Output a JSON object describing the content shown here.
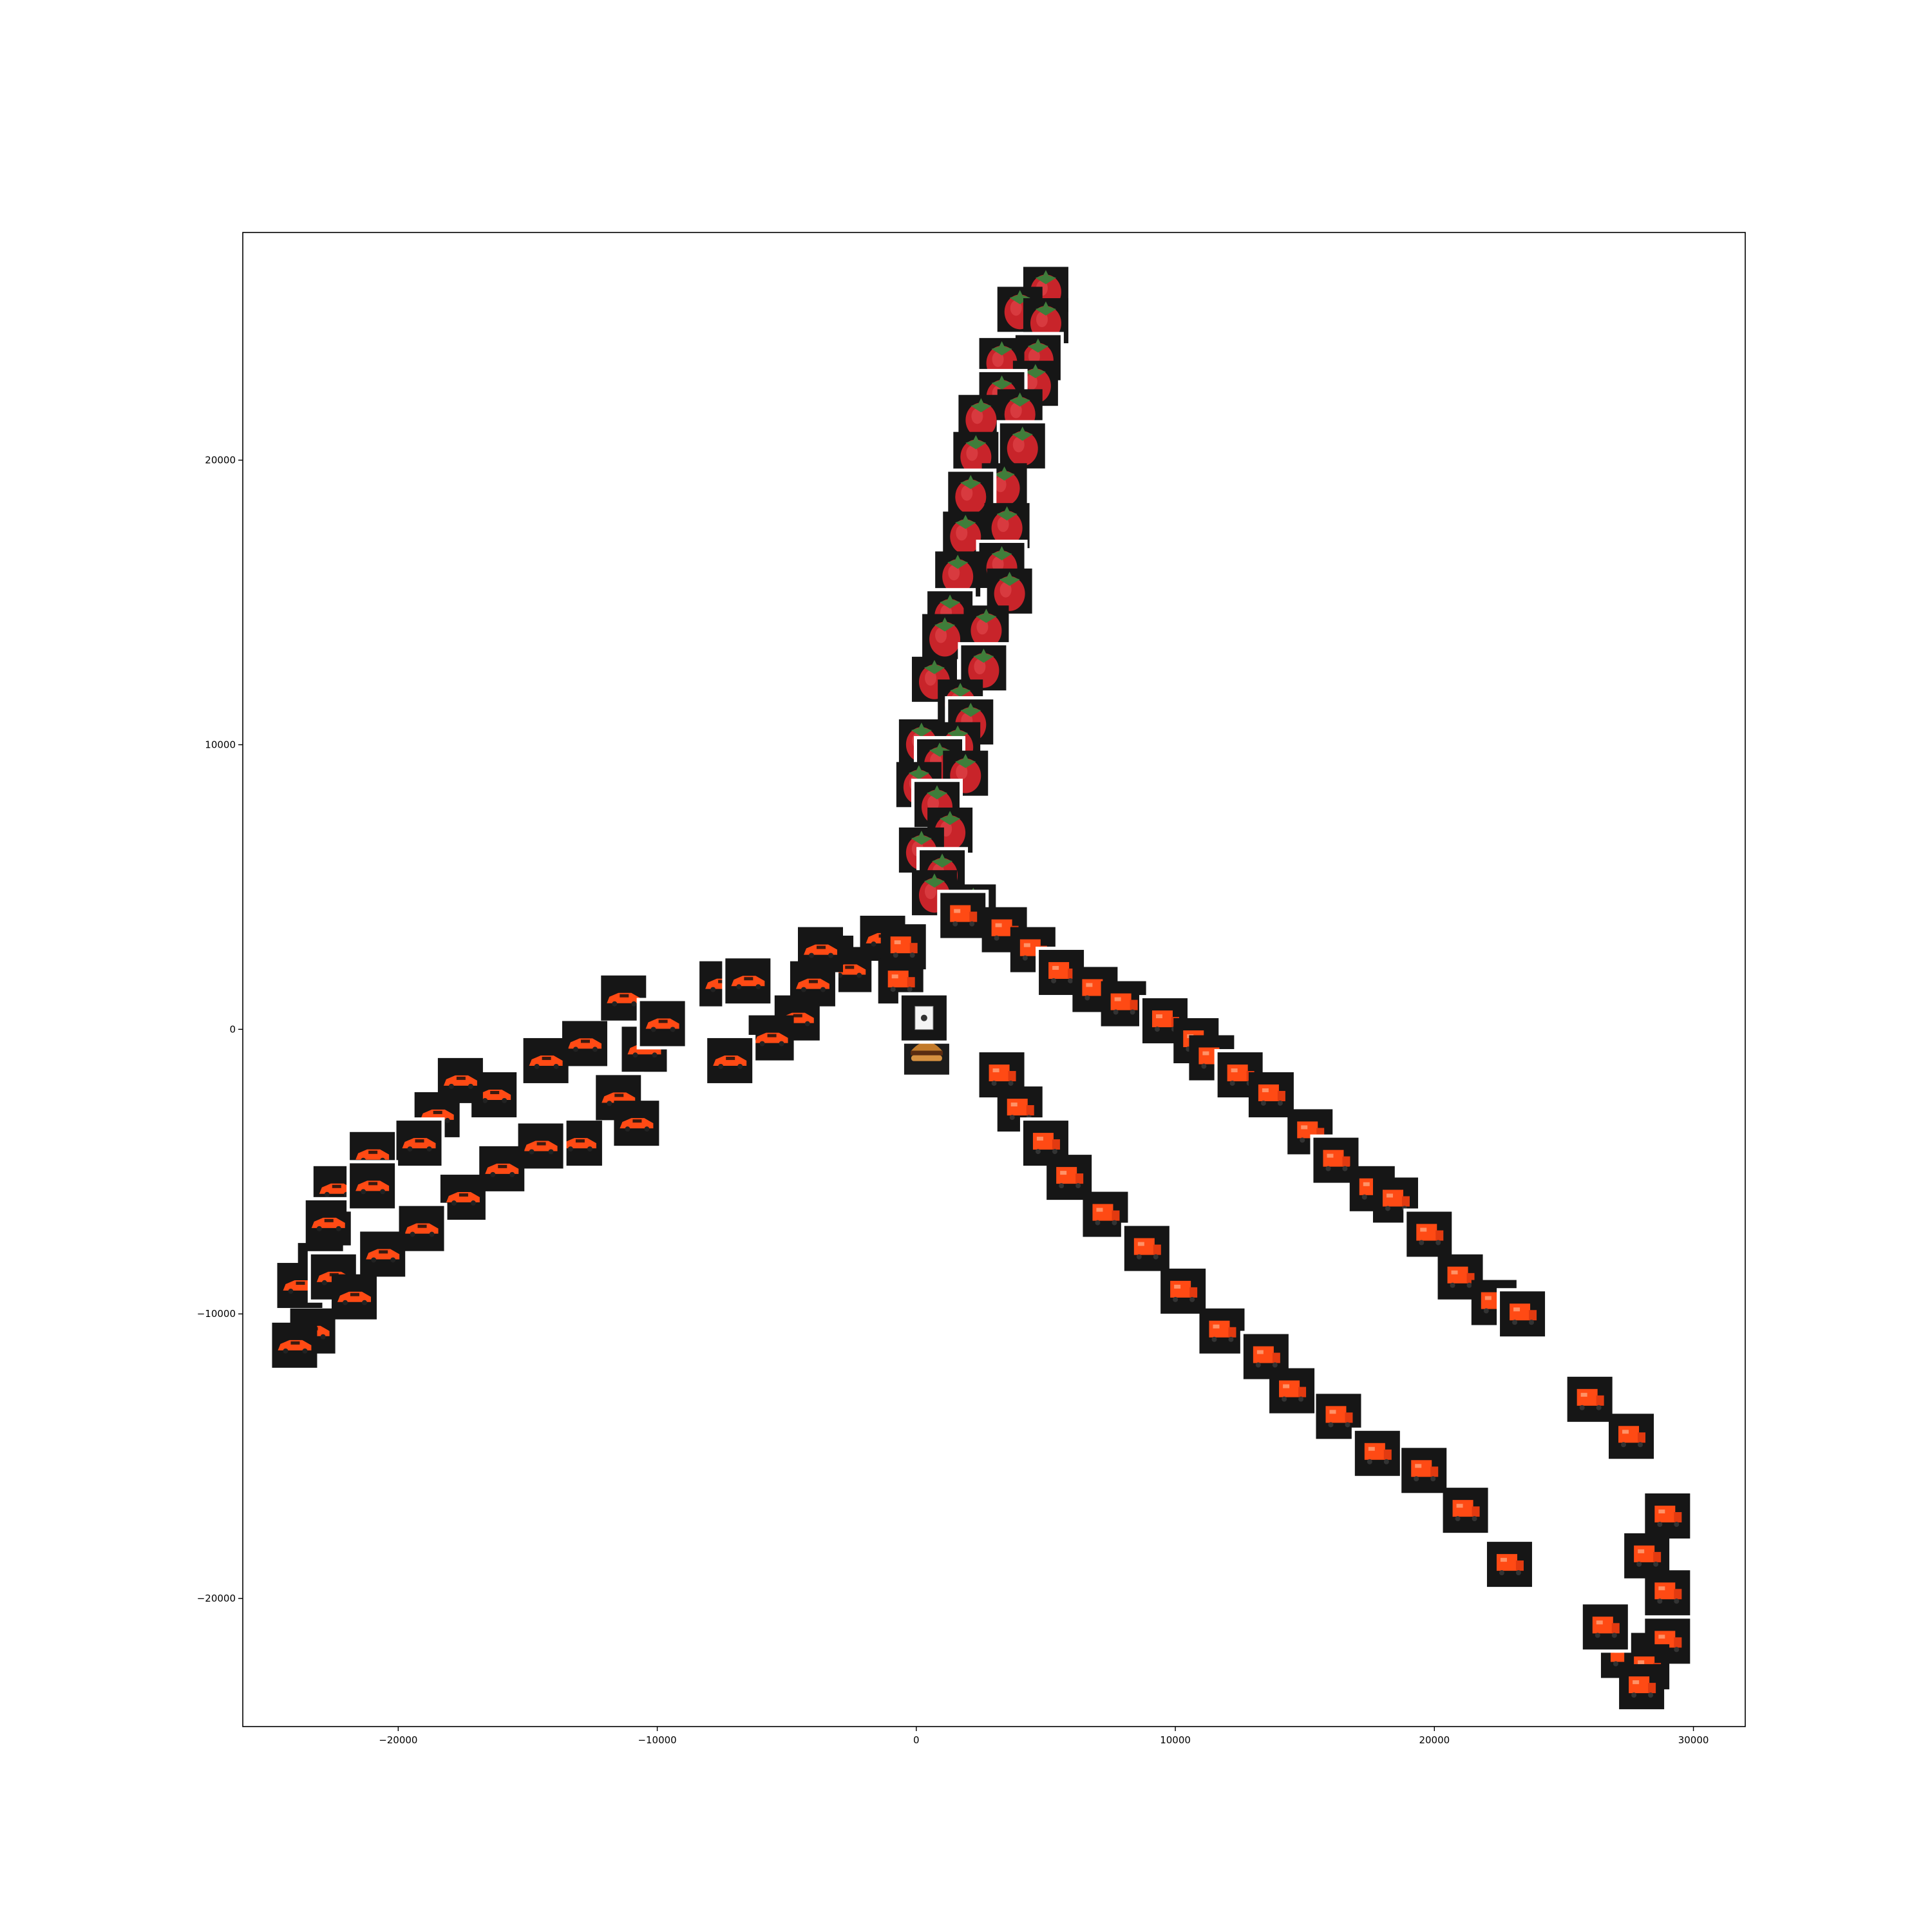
{
  "chart_data": {
    "type": "scatter",
    "title": "",
    "xlabel": "",
    "ylabel": "",
    "xlim": [
      -26000,
      32000
    ],
    "ylim": [
      -24500,
      28000
    ],
    "grid": false,
    "legend": "none",
    "x_ticks": [
      {
        "value": -20000,
        "label": "−20000"
      },
      {
        "value": -10000,
        "label": "−10000"
      },
      {
        "value": 0,
        "label": "0"
      },
      {
        "value": 10000,
        "label": "10000"
      },
      {
        "value": 20000,
        "label": "20000"
      },
      {
        "value": 30000,
        "label": "30000"
      }
    ],
    "y_ticks": [
      {
        "value": -20000,
        "label": "−20000"
      },
      {
        "value": -10000,
        "label": "−10000"
      },
      {
        "value": 0,
        "label": "0"
      },
      {
        "value": 10000,
        "label": "10000"
      },
      {
        "value": 20000,
        "label": "20000"
      }
    ],
    "colors": {
      "tile_background": "#161616",
      "tile_border": "#ffffff",
      "axes_frame": "#000000",
      "strawberry_red": "#c8242a",
      "strawberry_green": "#3f7d3a",
      "car_orange": "#ff4a14",
      "burger_bun": "#c27a2a"
    },
    "series": [
      {
        "icon": "strawberry-thumbnail",
        "points": [
          [
            5000,
            26000
          ],
          [
            4000,
            25300
          ],
          [
            5000,
            24900
          ],
          [
            4700,
            23600
          ],
          [
            3300,
            23500
          ],
          [
            4600,
            22700
          ],
          [
            3300,
            22300
          ],
          [
            4000,
            21700
          ],
          [
            2500,
            21500
          ],
          [
            4100,
            20500
          ],
          [
            2300,
            20200
          ],
          [
            3400,
            19100
          ],
          [
            2100,
            18800
          ],
          [
            3500,
            17700
          ],
          [
            1900,
            17400
          ],
          [
            3300,
            16300
          ],
          [
            1600,
            16000
          ],
          [
            3600,
            15400
          ],
          [
            1300,
            14600
          ],
          [
            2700,
            14100
          ],
          [
            1100,
            13800
          ],
          [
            2600,
            12700
          ],
          [
            700,
            12300
          ],
          [
            1700,
            11500
          ],
          [
            2100,
            10800
          ],
          [
            200,
            10100
          ],
          [
            1600,
            10000
          ],
          [
            900,
            9400
          ],
          [
            1900,
            9000
          ],
          [
            100,
            8600
          ],
          [
            800,
            7900
          ],
          [
            1300,
            7000
          ],
          [
            200,
            6300
          ],
          [
            1000,
            5500
          ],
          [
            700,
            4800
          ],
          [
            2200,
            4300
          ]
        ]
      },
      {
        "icon": "sports-car-thumbnail",
        "points": [
          [
            -1300,
            3200
          ],
          [
            -3300,
            2500
          ],
          [
            -2600,
            2100
          ],
          [
            -4000,
            1600
          ],
          [
            -3700,
            2800
          ],
          [
            -7500,
            1600
          ],
          [
            -6500,
            1700
          ],
          [
            -4600,
            400
          ],
          [
            -5600,
            -300
          ],
          [
            -7200,
            -1100
          ],
          [
            -10500,
            -700
          ],
          [
            -11300,
            1100
          ],
          [
            -9800,
            200
          ],
          [
            -12800,
            -500
          ],
          [
            -14300,
            -1100
          ],
          [
            -16300,
            -2300
          ],
          [
            -17600,
            -1800
          ],
          [
            -18500,
            -3000
          ],
          [
            -19200,
            -4000
          ],
          [
            -21000,
            -4400
          ],
          [
            -22400,
            -5600
          ],
          [
            -22700,
            -6800
          ],
          [
            -23000,
            -8300
          ],
          [
            -23800,
            -9000
          ],
          [
            -22500,
            -8700
          ],
          [
            -23300,
            -10600
          ],
          [
            -24000,
            -11100
          ],
          [
            -11500,
            -2400
          ],
          [
            -10800,
            -3300
          ],
          [
            -13000,
            -4000
          ],
          [
            -14500,
            -4100
          ],
          [
            -16000,
            -4900
          ],
          [
            -17500,
            -5900
          ],
          [
            -19100,
            -7000
          ],
          [
            -20600,
            -7900
          ],
          [
            -21700,
            -9400
          ],
          [
            -21000,
            -5500
          ]
        ]
      },
      {
        "icon": "orange-truck-thumbnail",
        "points": [
          [
            -500,
            2900
          ],
          [
            -600,
            1700
          ],
          [
            1800,
            4000
          ],
          [
            3400,
            3500
          ],
          [
            4500,
            2800
          ],
          [
            5600,
            2000
          ],
          [
            6900,
            1400
          ],
          [
            8000,
            900
          ],
          [
            9600,
            300
          ],
          [
            10800,
            -400
          ],
          [
            11400,
            -1000
          ],
          [
            12500,
            -1600
          ],
          [
            13700,
            -2300
          ],
          [
            15200,
            -3600
          ],
          [
            16200,
            -4600
          ],
          [
            17600,
            -5600
          ],
          [
            18500,
            -6000
          ],
          [
            19800,
            -7200
          ],
          [
            21000,
            -8700
          ],
          [
            22300,
            -9600
          ],
          [
            23400,
            -10000
          ],
          [
            3300,
            -1600
          ],
          [
            4000,
            -2800
          ],
          [
            5000,
            -4000
          ],
          [
            5900,
            -5200
          ],
          [
            7300,
            -6500
          ],
          [
            8900,
            -7700
          ],
          [
            10300,
            -9200
          ],
          [
            11800,
            -10600
          ],
          [
            13500,
            -11500
          ],
          [
            14500,
            -12700
          ],
          [
            16300,
            -13600
          ],
          [
            17800,
            -14900
          ],
          [
            19600,
            -15500
          ],
          [
            21200,
            -16900
          ],
          [
            22900,
            -18800
          ],
          [
            26000,
            -13000
          ],
          [
            27600,
            -14300
          ],
          [
            29000,
            -17100
          ],
          [
            28200,
            -18500
          ],
          [
            29000,
            -19800
          ],
          [
            29000,
            -21500
          ],
          [
            27300,
            -22000
          ],
          [
            28200,
            -22400
          ],
          [
            26600,
            -21000
          ],
          [
            28000,
            -23100
          ]
        ]
      },
      {
        "icon": "burger-thumbnail",
        "points": [
          [
            400,
            -800
          ]
        ]
      },
      {
        "icon": "playing-card-thumbnail",
        "points": [
          [
            300,
            400
          ]
        ]
      }
    ]
  }
}
